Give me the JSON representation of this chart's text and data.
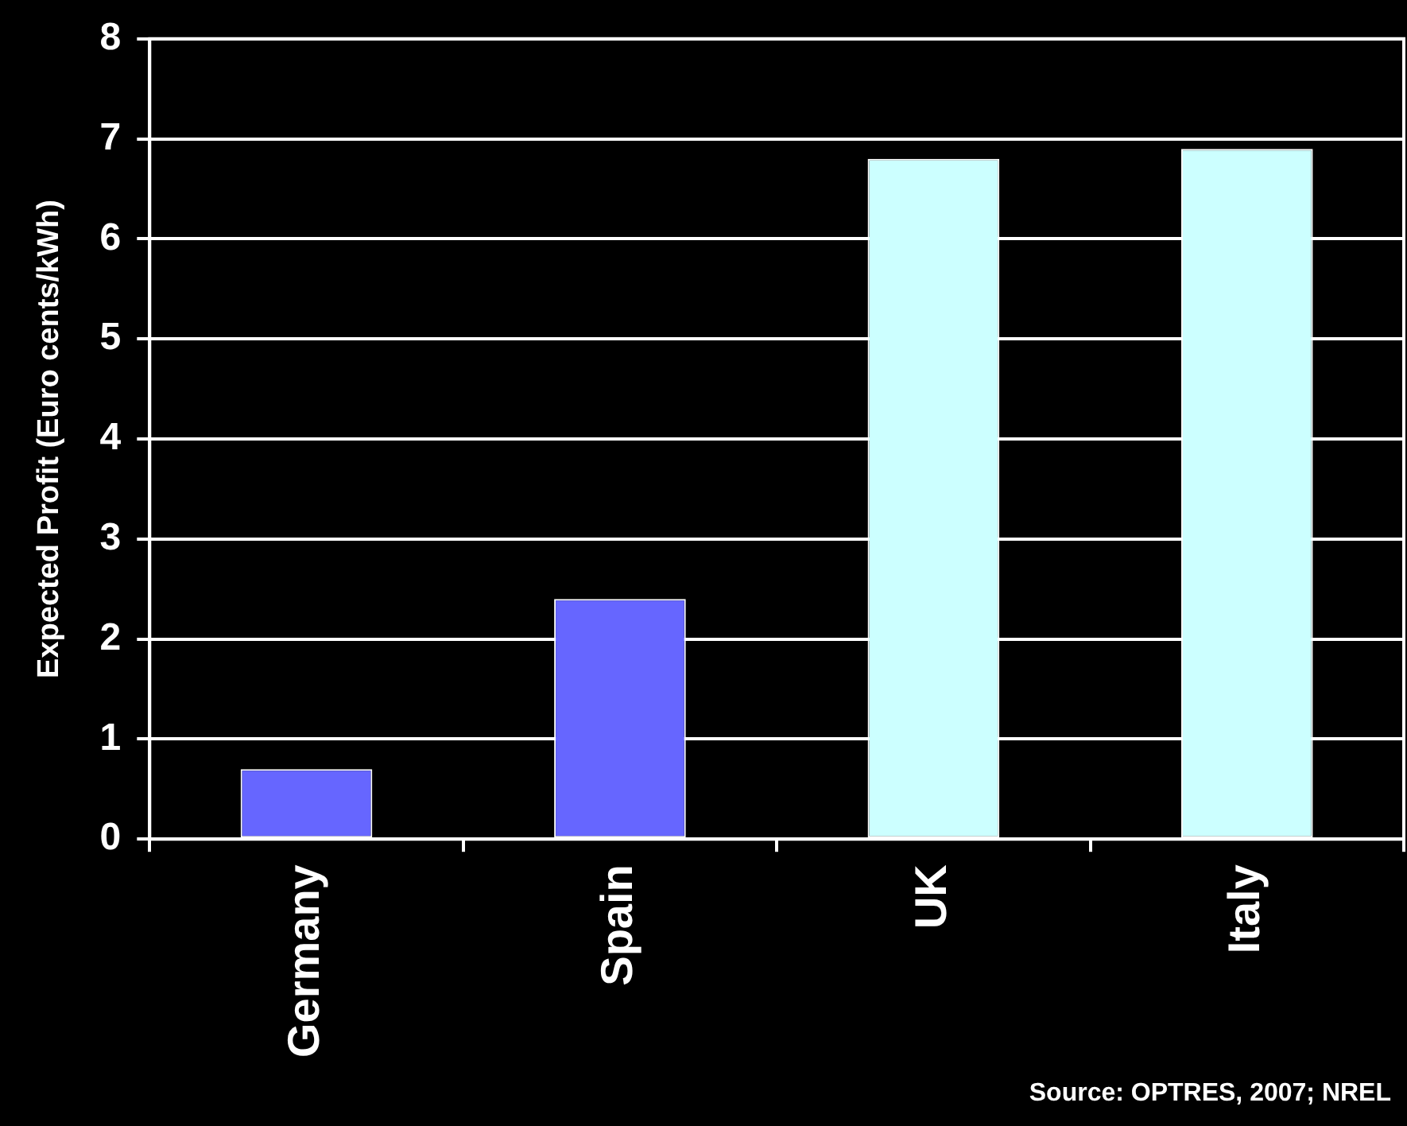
{
  "chart_data": {
    "type": "bar",
    "ylabel": "Expected Profit (Euro cents/kWh)",
    "categories": [
      "Germany",
      "Spain",
      "UK",
      "Italy"
    ],
    "values": [
      0.7,
      2.4,
      6.8,
      6.9
    ],
    "colors": [
      "#6666ff",
      "#6666ff",
      "#ccffff",
      "#ccffff"
    ],
    "ylim": [
      0,
      8
    ],
    "yticks": [
      0,
      1,
      2,
      3,
      4,
      5,
      6,
      7,
      8
    ],
    "grid": "y",
    "legend": false,
    "annotations": [
      "Source: OPTRES, 2007; NREL"
    ]
  }
}
